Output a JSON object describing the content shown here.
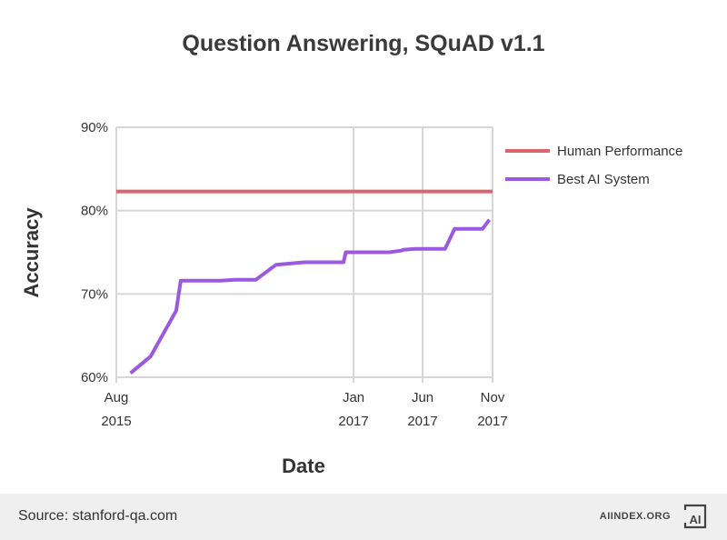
{
  "title": "Question Answering, SQuAD v1.1",
  "source": "Source: stanford-qa.com",
  "brand": "AIINDEX.ORG",
  "logo": "AI",
  "colors": {
    "human": "#d9666f",
    "ai": "#9b59e0",
    "grid": "#d6d6d6"
  },
  "chart_data": {
    "type": "line",
    "title": "Question Answering, SQuAD v1.1",
    "xlabel": "Date",
    "ylabel": "Accuracy",
    "xlim": [
      "2015-08-01",
      "2017-11-01"
    ],
    "ylim": [
      60,
      90
    ],
    "y_ticks": [
      60,
      70,
      80,
      90
    ],
    "y_tick_labels": [
      "60%",
      "70%",
      "80%",
      "90%"
    ],
    "x_ticks": [
      "2015-08-01",
      "2017-01-01",
      "2017-06-01",
      "2017-11-01"
    ],
    "x_tick_labels": [
      [
        "Aug",
        "2015"
      ],
      [
        "Jan",
        "2017"
      ],
      [
        "Jun",
        "2017"
      ],
      [
        "Nov",
        "2017"
      ]
    ],
    "grid": true,
    "legend_position": "right",
    "series": [
      {
        "name": "Human Performance",
        "color": "#d9666f",
        "x": [
          "2015-08-01",
          "2017-11-01"
        ],
        "y": [
          82.3,
          82.3
        ]
      },
      {
        "name": "Best AI System",
        "color": "#9b59e0",
        "x": [
          "2015-09-01",
          "2015-10-15",
          "2015-12-10",
          "2015-12-20",
          "2016-02-15",
          "2016-03-15",
          "2016-04-15",
          "2016-06-01",
          "2016-06-01",
          "2016-07-15",
          "2016-09-15",
          "2016-10-10",
          "2016-11-10",
          "2016-11-15",
          "2016-12-10",
          "2016-12-15",
          "2017-01-10",
          "2017-02-10",
          "2017-03-20",
          "2017-04-15",
          "2017-04-20",
          "2017-05-15",
          "2017-06-01",
          "2017-06-10",
          "2017-07-10",
          "2017-07-20",
          "2017-08-10",
          "2017-09-15",
          "2017-10-01",
          "2017-10-10",
          "2017-10-25"
        ],
        "y": [
          60.5,
          62.5,
          68.0,
          71.6,
          71.6,
          71.6,
          71.7,
          71.7,
          71.7,
          73.5,
          73.8,
          73.8,
          73.8,
          73.8,
          73.8,
          75.0,
          75.0,
          75.0,
          75.0,
          75.2,
          75.3,
          75.4,
          75.4,
          75.4,
          75.4,
          75.4,
          77.8,
          77.8,
          77.8,
          77.8,
          78.9
        ]
      }
    ]
  }
}
